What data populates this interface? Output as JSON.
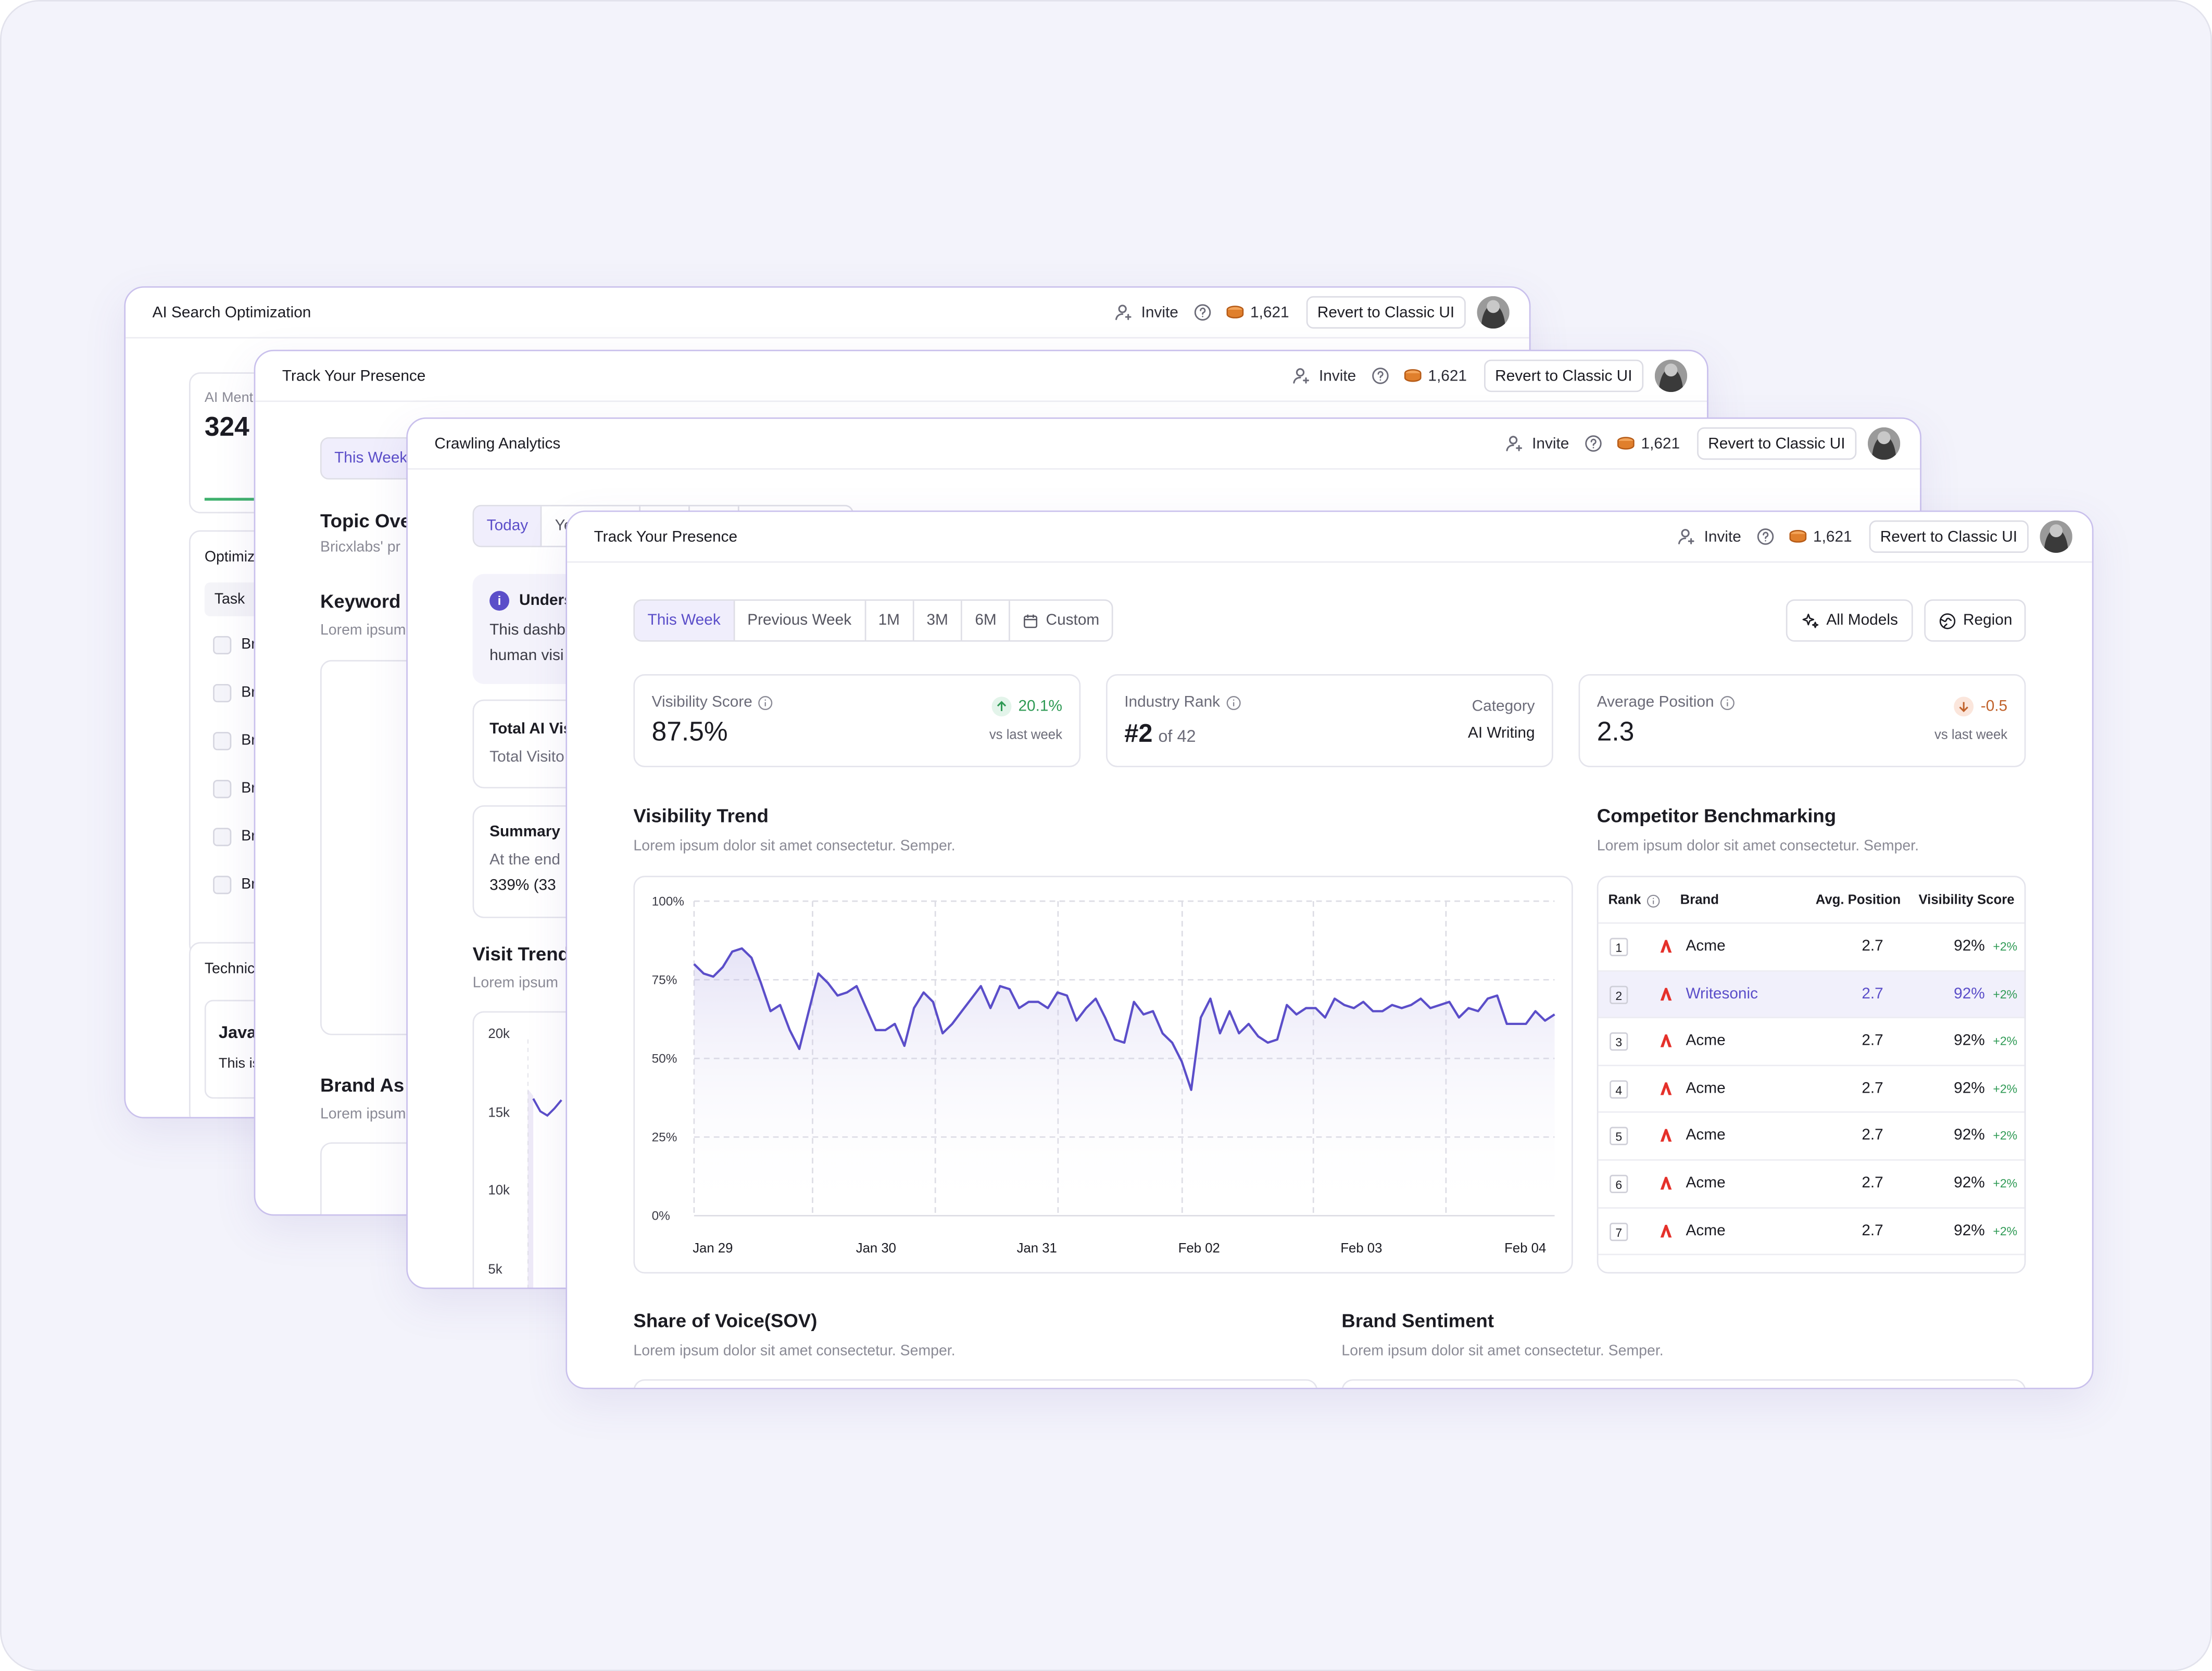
{
  "colors": {
    "accent": "#5b4ec9",
    "positive": "#2f9a55",
    "negative": "#c0622b",
    "brand_logo": "#e5312b",
    "background": "#f3f3fb",
    "window_border": "#c9c0ec"
  },
  "topbar": {
    "invite": "Invite",
    "credits": "1,621",
    "revert": "Revert to Classic UI",
    "invite_icon": "user-plus-icon",
    "help_icon": "help-circle-icon",
    "credits_icon": "coin-stack-icon"
  },
  "win1": {
    "title": "AI Search Optimization",
    "metric_label": "AI Ment",
    "metric_value": "324",
    "opt_label": "Optimiz",
    "task_header": "Task",
    "row_prefix": "Br",
    "tech_label": "Technic",
    "java_title": "Java",
    "java_text": "This is"
  },
  "win2": {
    "title": "Track Your Presence",
    "tab": "This Week",
    "topic_title": "Topic Ove",
    "topic_sub": "Bricxlabs' pr",
    "keyword_title": "Keyword",
    "keyword_sub": "Lorem ipsum",
    "brand_title": "Brand As",
    "brand_sub": "Lorem ipsum"
  },
  "win3": {
    "title": "Crawling Analytics",
    "tabs": [
      "Today",
      "Ye"
    ],
    "notice_title": "Unders",
    "notice_l1": "This dashb",
    "notice_l2": "human visi",
    "total_title": "Total AI Vis",
    "total_sub": "Total Visito",
    "summary_title": "Summary",
    "summary_l1": "At the end",
    "summary_l2": "339% (33",
    "trend_title": "Visit Trend",
    "trend_sub": "Lorem ipsum",
    "y_ticks": [
      "20k",
      "15k",
      "10k",
      "5k"
    ]
  },
  "main": {
    "title": "Track Your Presence",
    "tabs": [
      "This Week",
      "Previous Week",
      "1M",
      "3M",
      "6M",
      "Custom"
    ],
    "all_models": "All Models",
    "region": "Region",
    "kpi_visibility": {
      "label": "Visibility Score",
      "value": "87.5%",
      "change": "20.1%",
      "note": "vs last week"
    },
    "kpi_rank": {
      "label": "Industry Rank",
      "value": "#2",
      "of": "of 42",
      "cat_label": "Category",
      "cat_value": "AI Writing"
    },
    "kpi_position": {
      "label": "Average Position",
      "value": "2.3",
      "change": "-0.5",
      "note": "vs last week"
    },
    "trend": {
      "title": "Visibility Trend",
      "sub": "Lorem ipsum dolor sit amet consectetur. Semper."
    },
    "competitor": {
      "title": "Competitor Benchmarking",
      "sub": "Lorem ipsum dolor sit amet consectetur. Semper.",
      "headers": {
        "rank": "Rank",
        "brand": "Brand",
        "avg": "Avg. Position",
        "score": "Visibility Score"
      },
      "rows": [
        {
          "rank": "1",
          "brand": "Acme",
          "avg": "2.7",
          "score": "92%",
          "change": "+2%"
        },
        {
          "rank": "2",
          "brand": "Writesonic",
          "avg": "2.7",
          "score": "92%",
          "change": "+2%"
        },
        {
          "rank": "3",
          "brand": "Acme",
          "avg": "2.7",
          "score": "92%",
          "change": "+2%"
        },
        {
          "rank": "4",
          "brand": "Acme",
          "avg": "2.7",
          "score": "92%",
          "change": "+2%"
        },
        {
          "rank": "5",
          "brand": "Acme",
          "avg": "2.7",
          "score": "92%",
          "change": "+2%"
        },
        {
          "rank": "6",
          "brand": "Acme",
          "avg": "2.7",
          "score": "92%",
          "change": "+2%"
        },
        {
          "rank": "7",
          "brand": "Acme",
          "avg": "2.7",
          "score": "92%",
          "change": "+2%"
        }
      ]
    },
    "sov": {
      "title": "Share of Voice(SOV)",
      "sub": "Lorem ipsum dolor sit amet consectetur. Semper."
    },
    "sentiment": {
      "title": "Brand Sentiment",
      "sub": "Lorem ipsum dolor sit amet consectetur. Semper."
    }
  },
  "chart_data": {
    "type": "line",
    "title": "Visibility Trend",
    "x_labels": [
      "Jan 29",
      "Jan 30",
      "Jan 31",
      "Feb 02",
      "Feb 03",
      "Feb 04"
    ],
    "y_ticks": [
      "100%",
      "75%",
      "50%",
      "25%",
      "0%"
    ],
    "ylim": [
      0,
      100
    ],
    "grid": true,
    "series": [
      {
        "values": [
          80,
          77,
          76,
          79,
          84,
          85,
          82,
          74,
          65,
          67,
          59,
          53,
          65,
          77,
          74,
          70,
          71,
          73,
          66,
          59,
          59,
          61,
          54,
          66,
          71,
          68,
          58,
          61,
          65,
          69,
          73,
          66,
          73,
          72,
          66,
          68,
          68,
          66,
          71,
          70,
          62,
          66,
          69,
          63,
          56,
          55,
          68,
          64,
          65,
          58,
          55,
          49,
          40,
          63,
          69,
          58,
          65,
          58,
          61,
          57,
          55,
          56,
          67,
          64,
          66,
          66,
          63,
          69,
          67,
          66,
          68,
          65,
          65,
          67,
          66,
          67,
          69,
          66,
          67,
          68,
          63,
          66,
          65,
          69,
          70,
          61,
          61,
          61,
          65,
          62,
          64
        ]
      }
    ]
  }
}
